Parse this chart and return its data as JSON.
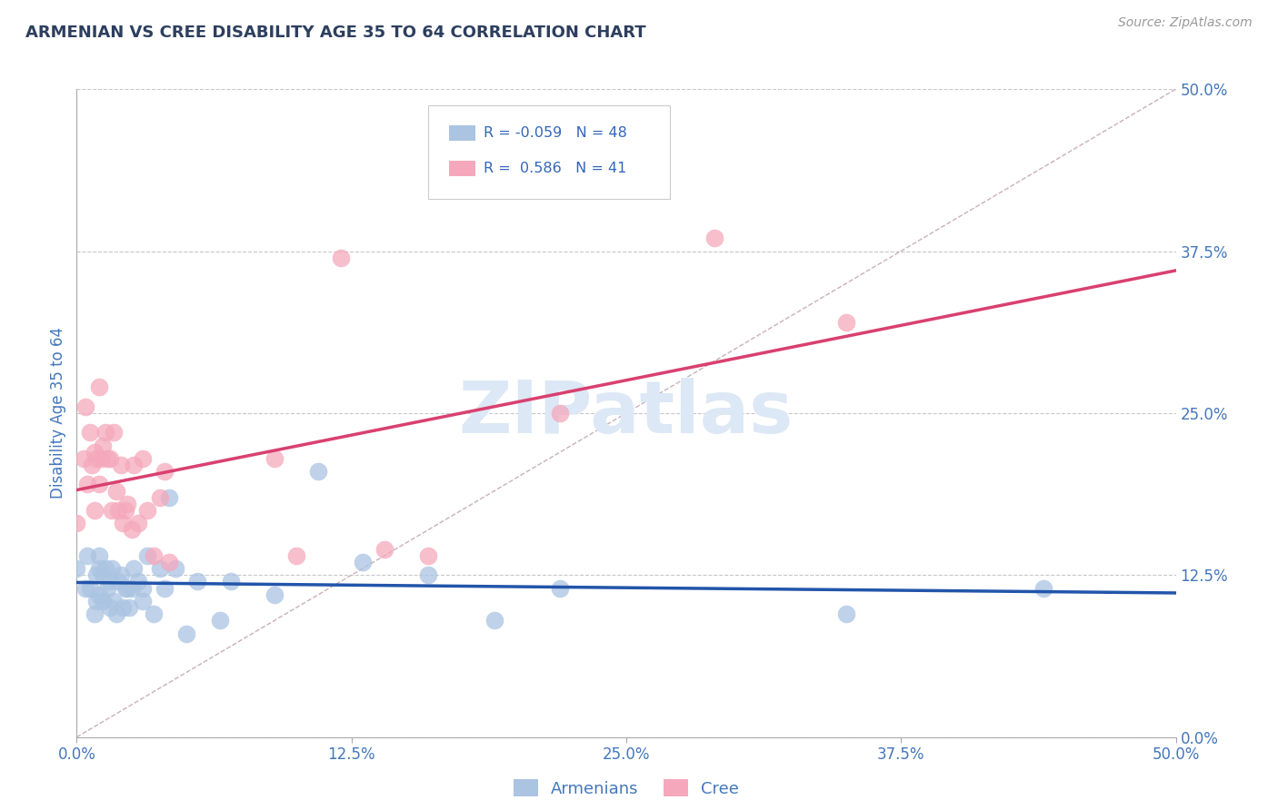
{
  "title": "ARMENIAN VS CREE DISABILITY AGE 35 TO 64 CORRELATION CHART",
  "source": "Source: ZipAtlas.com",
  "ylabel": "Disability Age 35 to 64",
  "xmin": 0.0,
  "xmax": 0.5,
  "ymin": 0.0,
  "ymax": 0.5,
  "armenians_R": -0.059,
  "armenians_N": 48,
  "cree_R": 0.586,
  "cree_N": 41,
  "armenians_color": "#aac4e2",
  "cree_color": "#f5a8bc",
  "armenians_line_color": "#2255aa",
  "cree_line_color": "#d94070",
  "reference_line_color": "#c8b0bc",
  "grid_color": "#c8c8c8",
  "title_color": "#2d3f5f",
  "axis_label_color": "#4477bb",
  "source_color": "#999999",
  "legend_R_color": "#3366bb",
  "watermark_color": "#dce8f5",
  "armenians_x": [
    0.0,
    0.004,
    0.005,
    0.006,
    0.008,
    0.009,
    0.009,
    0.01,
    0.01,
    0.01,
    0.012,
    0.012,
    0.013,
    0.014,
    0.015,
    0.015,
    0.016,
    0.017,
    0.018,
    0.019,
    0.02,
    0.021,
    0.022,
    0.023,
    0.024,
    0.025,
    0.026,
    0.028,
    0.03,
    0.03,
    0.032,
    0.035,
    0.038,
    0.04,
    0.042,
    0.045,
    0.05,
    0.055,
    0.065,
    0.07,
    0.09,
    0.11,
    0.13,
    0.16,
    0.19,
    0.22,
    0.35,
    0.44
  ],
  "armenians_y": [
    0.13,
    0.115,
    0.14,
    0.115,
    0.095,
    0.125,
    0.105,
    0.13,
    0.11,
    0.14,
    0.105,
    0.125,
    0.13,
    0.115,
    0.12,
    0.1,
    0.13,
    0.105,
    0.095,
    0.12,
    0.125,
    0.1,
    0.115,
    0.115,
    0.1,
    0.115,
    0.13,
    0.12,
    0.115,
    0.105,
    0.14,
    0.095,
    0.13,
    0.115,
    0.185,
    0.13,
    0.08,
    0.12,
    0.09,
    0.12,
    0.11,
    0.205,
    0.135,
    0.125,
    0.09,
    0.115,
    0.095,
    0.115
  ],
  "cree_x": [
    0.0,
    0.003,
    0.004,
    0.005,
    0.006,
    0.007,
    0.008,
    0.008,
    0.009,
    0.01,
    0.01,
    0.011,
    0.012,
    0.013,
    0.014,
    0.015,
    0.016,
    0.017,
    0.018,
    0.019,
    0.02,
    0.021,
    0.022,
    0.023,
    0.025,
    0.026,
    0.028,
    0.03,
    0.032,
    0.035,
    0.038,
    0.04,
    0.042,
    0.09,
    0.1,
    0.12,
    0.14,
    0.16,
    0.22,
    0.29,
    0.35
  ],
  "cree_y": [
    0.165,
    0.215,
    0.255,
    0.195,
    0.235,
    0.21,
    0.22,
    0.175,
    0.215,
    0.195,
    0.27,
    0.215,
    0.225,
    0.235,
    0.215,
    0.215,
    0.175,
    0.235,
    0.19,
    0.175,
    0.21,
    0.165,
    0.175,
    0.18,
    0.16,
    0.21,
    0.165,
    0.215,
    0.175,
    0.14,
    0.185,
    0.205,
    0.135,
    0.215,
    0.14,
    0.37,
    0.145,
    0.14,
    0.25,
    0.385,
    0.32
  ]
}
